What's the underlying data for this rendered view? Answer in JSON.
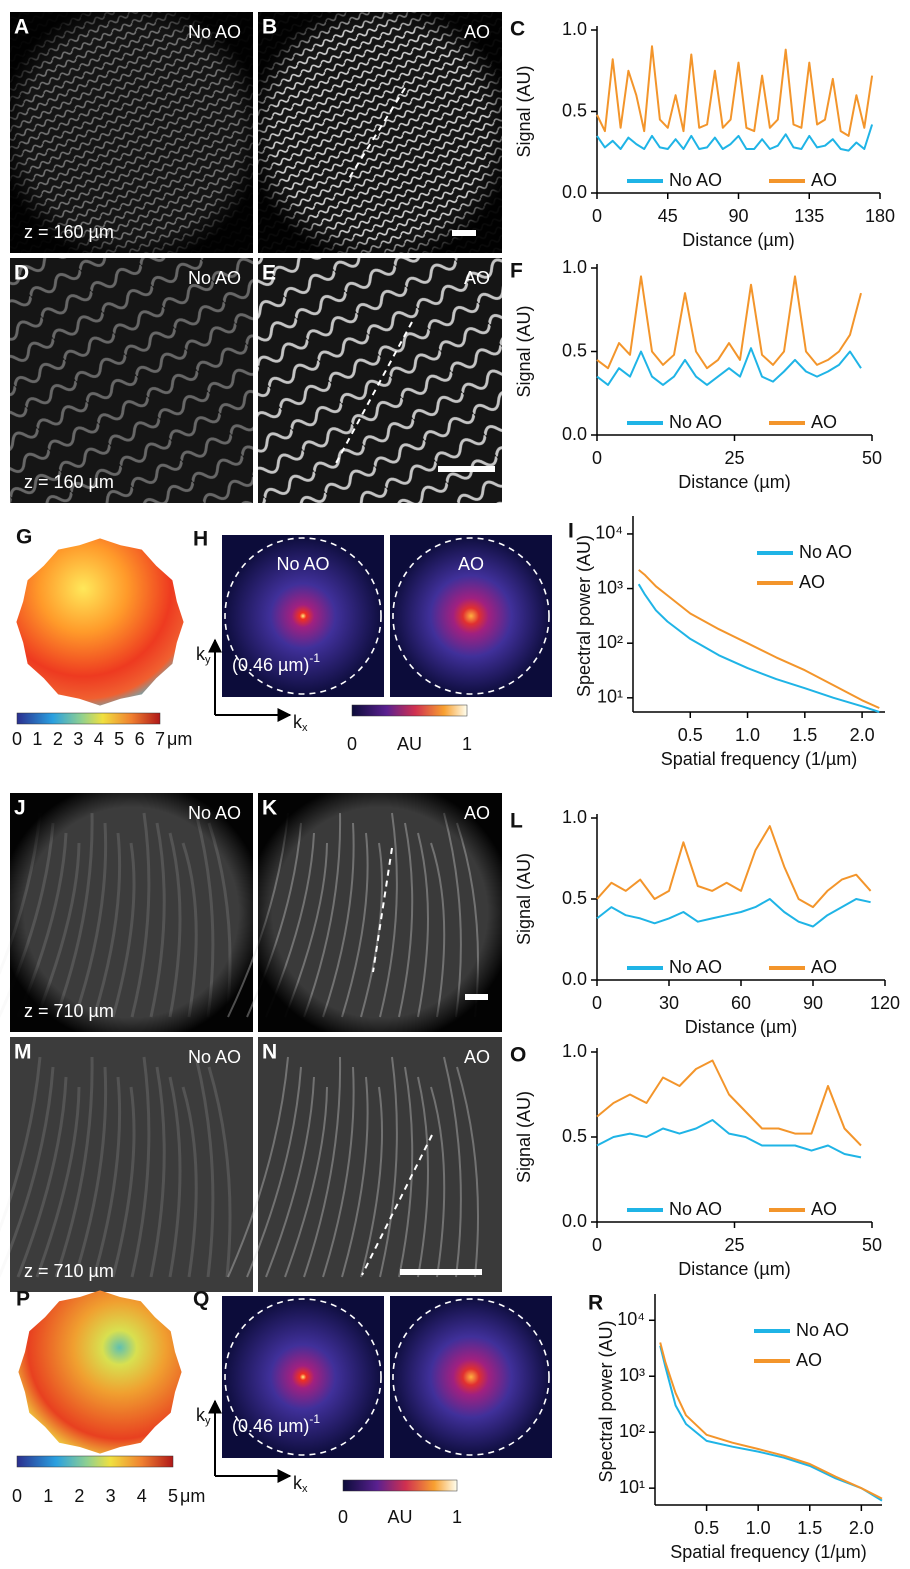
{
  "panels": [
    {
      "letter": "A",
      "label": "No AO",
      "depth": "z = 160 µm"
    },
    {
      "letter": "B",
      "label": "AO"
    },
    {
      "letter": "D",
      "label": "No AO",
      "depth": "z = 160 µm"
    },
    {
      "letter": "E",
      "label": "AO"
    },
    {
      "letter": "J",
      "label": "No AO",
      "depth": "z = 710 µm"
    },
    {
      "letter": "K",
      "label": "AO"
    },
    {
      "letter": "M",
      "label": "No AO",
      "depth": "z = 710 µm"
    },
    {
      "letter": "N",
      "label": "AO"
    }
  ],
  "wavefronts": [
    {
      "letter": "G",
      "colorbar": {
        "lim": [
          0,
          7
        ],
        "ticks": [
          0,
          1,
          2,
          3,
          4,
          5,
          6,
          7
        ],
        "unit": "μm"
      }
    },
    {
      "letter": "P",
      "colorbar": {
        "lim": [
          0,
          5
        ],
        "ticks": [
          0,
          1,
          2,
          3,
          4,
          5
        ],
        "unit": "μm"
      }
    }
  ],
  "spectra": [
    {
      "letter": "H",
      "labels": [
        "No AO",
        "AO"
      ],
      "radius": "(0.46 µm)",
      "radius_exp": "-1",
      "kx": {
        "base": "k",
        "sub": "x"
      },
      "ky": {
        "base": "k",
        "sub": "y"
      },
      "colorbar": {
        "lim": [
          0,
          1
        ],
        "ticks": [
          0,
          1
        ],
        "unit": "AU"
      }
    },
    {
      "letter": "Q",
      "radius": "(0.46 µm)",
      "radius_exp": "-1",
      "kx": {
        "base": "k",
        "sub": "x"
      },
      "ky": {
        "base": "k",
        "sub": "y"
      },
      "colorbar": {
        "lim": [
          0,
          1
        ],
        "ticks": [
          0,
          1
        ],
        "unit": "AU"
      }
    }
  ],
  "chart_data": [
    {
      "type": "line",
      "label": "C",
      "x_label": "Distance (µm)",
      "y_label": "Signal (AU)",
      "legend": "lower center",
      "xlim": [
        0,
        180
      ],
      "xticks": [
        0,
        45,
        90,
        135,
        180
      ],
      "ylim": [
        0,
        1
      ],
      "yticks": [
        {
          "value": 0,
          "label": "0.0"
        },
        {
          "value": 0.5,
          "label": "0.5"
        },
        {
          "value": 1,
          "label": "1.0"
        }
      ],
      "x": [
        0,
        5,
        10,
        15,
        20,
        25,
        30,
        35,
        40,
        45,
        50,
        55,
        60,
        65,
        70,
        75,
        80,
        85,
        90,
        95,
        100,
        105,
        110,
        115,
        120,
        125,
        130,
        135,
        140,
        145,
        150,
        155,
        160,
        165,
        170,
        175
      ],
      "series": [
        {
          "name": "No AO",
          "color": "#1fb4e6",
          "values": [
            0.35,
            0.28,
            0.32,
            0.27,
            0.34,
            0.3,
            0.27,
            0.35,
            0.28,
            0.27,
            0.33,
            0.27,
            0.35,
            0.27,
            0.28,
            0.34,
            0.27,
            0.3,
            0.35,
            0.27,
            0.27,
            0.33,
            0.27,
            0.29,
            0.36,
            0.28,
            0.27,
            0.35,
            0.28,
            0.29,
            0.33,
            0.27,
            0.26,
            0.31,
            0.27,
            0.42
          ]
        },
        {
          "name": "AO",
          "color": "#f3952b",
          "values": [
            0.48,
            0.38,
            0.82,
            0.4,
            0.75,
            0.6,
            0.38,
            0.9,
            0.45,
            0.4,
            0.6,
            0.38,
            0.85,
            0.4,
            0.42,
            0.75,
            0.4,
            0.45,
            0.8,
            0.4,
            0.38,
            0.72,
            0.4,
            0.45,
            0.88,
            0.42,
            0.4,
            0.8,
            0.42,
            0.45,
            0.7,
            0.38,
            0.35,
            0.6,
            0.4,
            0.72
          ]
        }
      ]
    },
    {
      "type": "line",
      "label": "F",
      "x_label": "Distance (µm)",
      "y_label": "Signal (AU)",
      "legend": "lower center",
      "xlim": [
        0,
        50
      ],
      "xticks": [
        0,
        25,
        50
      ],
      "ylim": [
        0,
        1
      ],
      "yticks": [
        {
          "value": 0,
          "label": "0.0"
        },
        {
          "value": 0.5,
          "label": "0.5"
        },
        {
          "value": 1,
          "label": "1.0"
        }
      ],
      "x": [
        0,
        2,
        4,
        6,
        8,
        10,
        12,
        14,
        16,
        18,
        20,
        22,
        24,
        26,
        28,
        30,
        32,
        34,
        36,
        38,
        40,
        42,
        44,
        46,
        48
      ],
      "series": [
        {
          "name": "No AO",
          "color": "#1fb4e6",
          "values": [
            0.35,
            0.3,
            0.4,
            0.35,
            0.5,
            0.35,
            0.3,
            0.35,
            0.45,
            0.35,
            0.3,
            0.35,
            0.4,
            0.35,
            0.52,
            0.35,
            0.32,
            0.38,
            0.45,
            0.38,
            0.35,
            0.38,
            0.42,
            0.5,
            0.4
          ]
        },
        {
          "name": "AO",
          "color": "#f3952b",
          "values": [
            0.45,
            0.4,
            0.55,
            0.48,
            0.95,
            0.5,
            0.42,
            0.48,
            0.85,
            0.5,
            0.4,
            0.45,
            0.55,
            0.45,
            0.9,
            0.48,
            0.42,
            0.5,
            0.95,
            0.5,
            0.42,
            0.45,
            0.5,
            0.6,
            0.85
          ]
        }
      ]
    },
    {
      "type": "line",
      "label": "I",
      "x_label": "Spatial frequency (1/µm)",
      "y_label": "Spectral power (AU)",
      "legend": "upper right",
      "log_y": true,
      "xlim": [
        0,
        2.2
      ],
      "xticks": [
        0.5,
        {
          "value": 1,
          "label": "1.0"
        },
        1.5,
        {
          "value": 2,
          "label": "2.0"
        }
      ],
      "ylim": [
        5.5,
        18000
      ],
      "yticks": [
        {
          "value": 10,
          "label": "10¹"
        },
        {
          "value": 100,
          "label": "10²"
        },
        {
          "value": 1000,
          "label": "10³"
        },
        {
          "value": 10000,
          "label": "10⁴"
        }
      ],
      "x": [
        0.05,
        0.1,
        0.2,
        0.3,
        0.5,
        0.75,
        1.0,
        1.25,
        1.5,
        1.75,
        2.0,
        2.15
      ],
      "series": [
        {
          "name": "No AO",
          "color": "#1fb4e6",
          "values": [
            1200,
            800,
            400,
            250,
            120,
            60,
            35,
            22,
            15,
            10,
            7,
            5.5
          ]
        },
        {
          "name": "AO",
          "color": "#f3952b",
          "values": [
            2200,
            1800,
            1100,
            750,
            350,
            180,
            100,
            55,
            32,
            17,
            9,
            6.5
          ]
        }
      ]
    },
    {
      "type": "line",
      "label": "L",
      "x_label": "Distance (µm)",
      "y_label": "Signal (AU)",
      "legend": "lower center",
      "xlim": [
        0,
        120
      ],
      "xticks": [
        0,
        30,
        60,
        90,
        120
      ],
      "ylim": [
        0,
        1
      ],
      "yticks": [
        {
          "value": 0,
          "label": "0.0"
        },
        {
          "value": 0.5,
          "label": "0.5"
        },
        {
          "value": 1,
          "label": "1.0"
        }
      ],
      "x": [
        0,
        6,
        12,
        18,
        24,
        30,
        36,
        42,
        48,
        54,
        60,
        66,
        72,
        78,
        84,
        90,
        96,
        102,
        108,
        114
      ],
      "series": [
        {
          "name": "No AO",
          "color": "#1fb4e6",
          "values": [
            0.38,
            0.45,
            0.4,
            0.38,
            0.35,
            0.38,
            0.42,
            0.36,
            0.38,
            0.4,
            0.42,
            0.45,
            0.5,
            0.42,
            0.36,
            0.33,
            0.4,
            0.45,
            0.5,
            0.48
          ]
        },
        {
          "name": "AO",
          "color": "#f3952b",
          "values": [
            0.5,
            0.6,
            0.55,
            0.62,
            0.5,
            0.55,
            0.85,
            0.58,
            0.55,
            0.6,
            0.55,
            0.8,
            0.95,
            0.7,
            0.5,
            0.45,
            0.55,
            0.62,
            0.65,
            0.55
          ]
        }
      ]
    },
    {
      "type": "line",
      "label": "O",
      "x_label": "Distance (µm)",
      "y_label": "Signal (AU)",
      "legend": "lower center",
      "xlim": [
        0,
        50
      ],
      "xticks": [
        0,
        25,
        50
      ],
      "ylim": [
        0,
        1
      ],
      "yticks": [
        {
          "value": 0,
          "label": "0.0"
        },
        {
          "value": 0.5,
          "label": "0.5"
        },
        {
          "value": 1,
          "label": "1.0"
        }
      ],
      "x": [
        0,
        3,
        6,
        9,
        12,
        15,
        18,
        21,
        24,
        27,
        30,
        33,
        36,
        39,
        42,
        45,
        48
      ],
      "series": [
        {
          "name": "No AO",
          "color": "#1fb4e6",
          "values": [
            0.45,
            0.5,
            0.52,
            0.5,
            0.55,
            0.52,
            0.55,
            0.6,
            0.52,
            0.5,
            0.45,
            0.45,
            0.45,
            0.42,
            0.45,
            0.4,
            0.38
          ]
        },
        {
          "name": "AO",
          "color": "#f3952b",
          "values": [
            0.62,
            0.7,
            0.75,
            0.7,
            0.85,
            0.8,
            0.9,
            0.95,
            0.75,
            0.65,
            0.55,
            0.55,
            0.52,
            0.52,
            0.8,
            0.55,
            0.45
          ]
        }
      ]
    },
    {
      "type": "line",
      "label": "R",
      "x_label": "Spatial frequency (1/µm)",
      "y_label": "Spectral power (AU)",
      "legend": "upper right",
      "log_y": true,
      "xlim": [
        0,
        2.2
      ],
      "xticks": [
        0.5,
        {
          "value": 1,
          "label": "1.0"
        },
        1.5,
        {
          "value": 2,
          "label": "2.0"
        }
      ],
      "ylim": [
        5,
        25000
      ],
      "yticks": [
        {
          "value": 10,
          "label": "10¹"
        },
        {
          "value": 100,
          "label": "10²"
        },
        {
          "value": 1000,
          "label": "10³"
        },
        {
          "value": 10000,
          "label": "10⁴"
        }
      ],
      "x": [
        0.05,
        0.1,
        0.2,
        0.3,
        0.5,
        0.75,
        1.0,
        1.25,
        1.5,
        1.75,
        2.0,
        2.2
      ],
      "series": [
        {
          "name": "No AO",
          "color": "#1fb4e6",
          "values": [
            3500,
            1500,
            300,
            140,
            70,
            55,
            45,
            35,
            25,
            15,
            10,
            6
          ]
        },
        {
          "name": "AO",
          "color": "#f3952b",
          "values": [
            4000,
            1800,
            500,
            200,
            90,
            65,
            50,
            38,
            27,
            16,
            10,
            6.5
          ]
        }
      ]
    }
  ]
}
